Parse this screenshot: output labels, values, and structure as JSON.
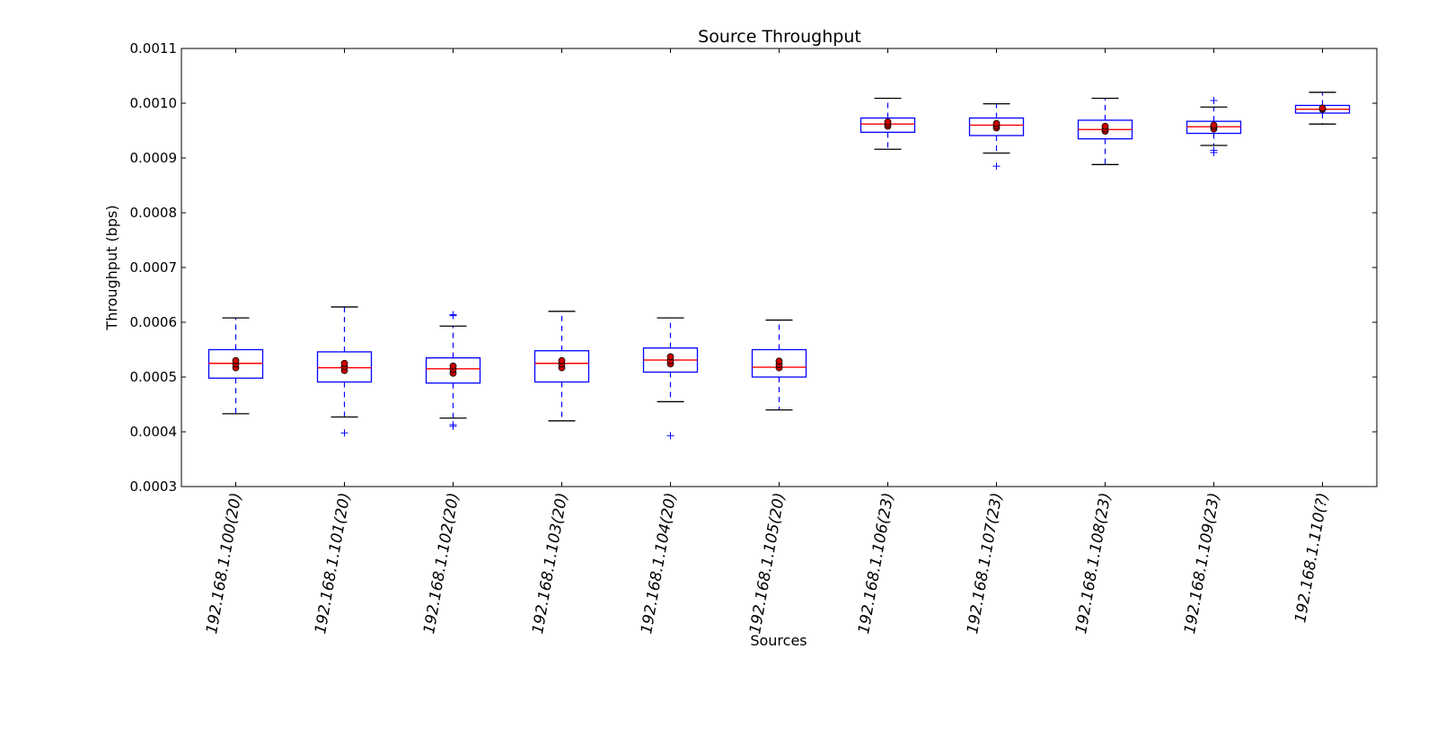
{
  "chart_data": {
    "type": "box",
    "title": "Source Throughput",
    "xlabel": "Sources",
    "ylabel": "Throughput (bps)",
    "ylim": [
      0.0003,
      0.0011
    ],
    "yticks": [
      "0.0003",
      "0.0004",
      "0.0005",
      "0.0006",
      "0.0007",
      "0.0008",
      "0.0009",
      "0.0010",
      "0.0011"
    ],
    "grid": false,
    "categories": [
      "192.168.1.100(20)",
      "192.168.1.101(20)",
      "192.168.1.102(20)",
      "192.168.1.103(20)",
      "192.168.1.104(20)",
      "192.168.1.105(20)",
      "192.168.1.106(23)",
      "192.168.1.107(23)",
      "192.168.1.108(23)",
      "192.168.1.109(23)",
      "192.168.1.110(?)"
    ],
    "boxes": [
      {
        "whisker_low": 0.000433,
        "q1": 0.000498,
        "median": 0.000525,
        "q3": 0.00055,
        "whisker_high": 0.000608,
        "outliers": [],
        "points": [
          0.000517,
          0.000524,
          0.00053
        ]
      },
      {
        "whisker_low": 0.000427,
        "q1": 0.000491,
        "median": 0.000517,
        "q3": 0.000546,
        "whisker_high": 0.000628,
        "outliers": [
          0.000398
        ],
        "points": [
          0.000512,
          0.000519,
          0.000525
        ]
      },
      {
        "whisker_low": 0.000425,
        "q1": 0.000489,
        "median": 0.000515,
        "q3": 0.000535,
        "whisker_high": 0.000593,
        "outliers": [
          0.000413,
          0.00041,
          0.000614,
          0.000612
        ],
        "points": [
          0.000507,
          0.000514,
          0.00052
        ]
      },
      {
        "whisker_low": 0.00042,
        "q1": 0.000491,
        "median": 0.000525,
        "q3": 0.000548,
        "whisker_high": 0.00062,
        "outliers": [],
        "points": [
          0.000517,
          0.000524,
          0.00053
        ]
      },
      {
        "whisker_low": 0.000455,
        "q1": 0.000509,
        "median": 0.000531,
        "q3": 0.000553,
        "whisker_high": 0.000608,
        "outliers": [
          0.000393
        ],
        "points": [
          0.000524,
          0.00053,
          0.000537
        ]
      },
      {
        "whisker_low": 0.00044,
        "q1": 0.0005,
        "median": 0.000518,
        "q3": 0.00055,
        "whisker_high": 0.000604,
        "outliers": [],
        "points": [
          0.000517,
          0.000523,
          0.000529
        ]
      },
      {
        "whisker_low": 0.000916,
        "q1": 0.000947,
        "median": 0.000962,
        "q3": 0.000973,
        "whisker_high": 0.001009,
        "outliers": [],
        "points": [
          0.000958,
          0.000962,
          0.000966
        ]
      },
      {
        "whisker_low": 0.000909,
        "q1": 0.000941,
        "median": 0.00096,
        "q3": 0.000973,
        "whisker_high": 0.000999,
        "outliers": [
          0.000885
        ],
        "points": [
          0.000955,
          0.000959,
          0.000963
        ]
      },
      {
        "whisker_low": 0.000888,
        "q1": 0.000935,
        "median": 0.000952,
        "q3": 0.000969,
        "whisker_high": 0.001009,
        "outliers": [],
        "points": [
          0.000949,
          0.000953,
          0.000958
        ]
      },
      {
        "whisker_low": 0.000923,
        "q1": 0.000945,
        "median": 0.000957,
        "q3": 0.000967,
        "whisker_high": 0.000993,
        "outliers": [
          0.000914,
          0.00091,
          0.001005
        ],
        "points": [
          0.000953,
          0.000957,
          0.00096
        ]
      },
      {
        "whisker_low": 0.000962,
        "q1": 0.000982,
        "median": 0.000989,
        "q3": 0.000996,
        "whisker_high": 0.00102,
        "outliers": [],
        "points": [
          0.000989,
          0.000991
        ]
      }
    ],
    "colors": {
      "box": "#0000ff",
      "median": "#ff0000",
      "whisker_cap": "#000000",
      "point_fill": "#cc0000",
      "outlier": "#0000ff"
    }
  }
}
